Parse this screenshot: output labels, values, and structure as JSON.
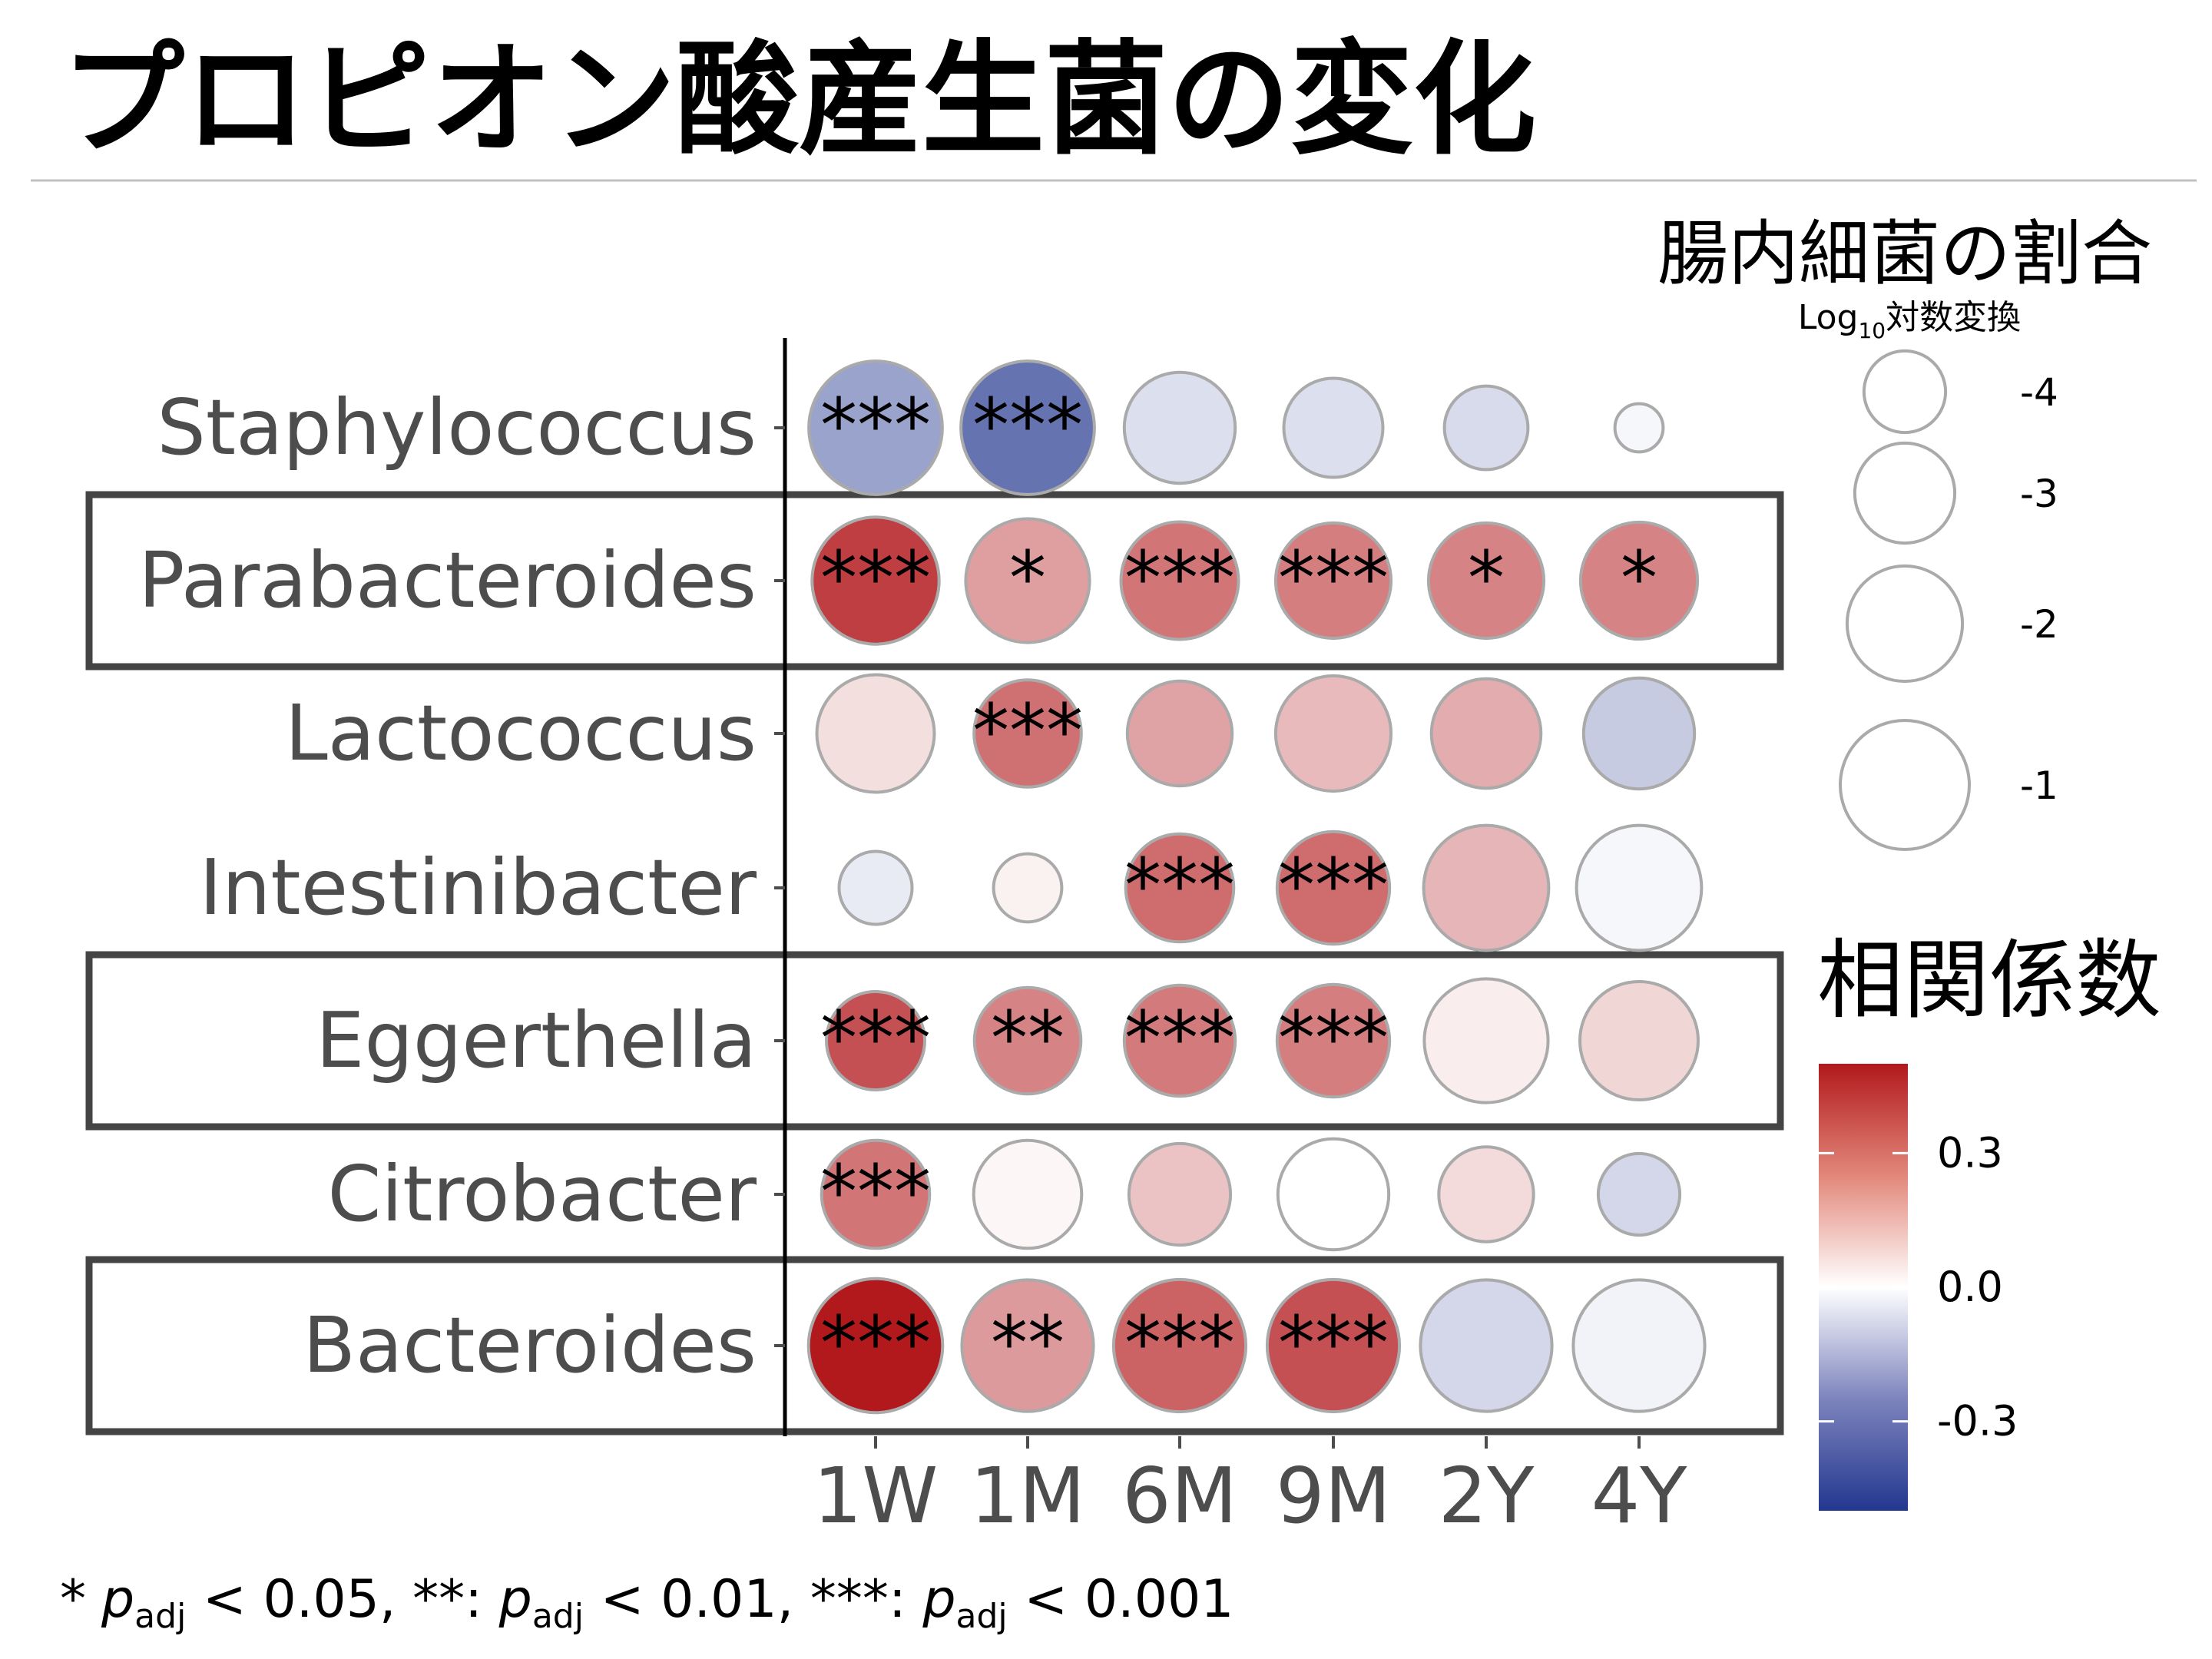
{
  "slide": {
    "title": "プロピオン酸産生菌の変化",
    "footnote": {
      "s1": "*",
      "p": "p",
      "adj": "adj",
      "t1": " < 0.05, ",
      "s2": "**: ",
      "t2": " < 0.01, ",
      "s3": "***: ",
      "t3": " < 0.001"
    }
  },
  "colors": {
    "divider": "#c0c0c0",
    "box": "#444444",
    "axis": "#000000",
    "tick_label": "#4d4d4d",
    "circle_stroke": "#aaaaaa",
    "scale_low": "#23378f",
    "scale_mid": "#ffffff",
    "scale_high": "#b2191d"
  },
  "chart_data": {
    "type": "bubble",
    "x_categories": [
      "1W",
      "1M",
      "6M",
      "9M",
      "2Y",
      "4Y"
    ],
    "y_categories": [
      "Staphylococcus",
      "Parabacteroides",
      "Lactococcus",
      "Intestinibacter",
      "Eggerthella",
      "Citrobacter",
      "Bacteroides"
    ],
    "highlighted_rows": [
      "Parabacteroides",
      "Eggerthella",
      "Bacteroides"
    ],
    "size_variable": "log10_abundance",
    "color_variable": "correlation",
    "cells": [
      {
        "y": "Staphylococcus",
        "x": "1W",
        "abundance_log10": -0.65,
        "corr": -0.23,
        "sig": "***"
      },
      {
        "y": "Staphylococcus",
        "x": "1M",
        "abundance_log10": -0.65,
        "corr": -0.35,
        "sig": "***"
      },
      {
        "y": "Staphylococcus",
        "x": "6M",
        "abundance_log10": -2.3,
        "corr": -0.08,
        "sig": ""
      },
      {
        "y": "Staphylococcus",
        "x": "9M",
        "abundance_log10": -3.05,
        "corr": -0.08,
        "sig": ""
      },
      {
        "y": "Staphylococcus",
        "x": "2Y",
        "abundance_log10": -3.9,
        "corr": -0.09,
        "sig": ""
      },
      {
        "y": "Staphylococcus",
        "x": "4Y",
        "abundance_log10": -5.3,
        "corr": -0.02,
        "sig": ""
      },
      {
        "y": "Parabacteroides",
        "x": "1W",
        "abundance_log10": -1.15,
        "corr": 0.42,
        "sig": "***"
      },
      {
        "y": "Parabacteroides",
        "x": "1M",
        "abundance_log10": -1.4,
        "corr": 0.21,
        "sig": "*"
      },
      {
        "y": "Parabacteroides",
        "x": "6M",
        "abundance_log10": -1.85,
        "corr": 0.3,
        "sig": "***"
      },
      {
        "y": "Parabacteroides",
        "x": "9M",
        "abundance_log10": -2.0,
        "corr": 0.28,
        "sig": "***"
      },
      {
        "y": "Parabacteroides",
        "x": "2Y",
        "abundance_log10": -2.0,
        "corr": 0.27,
        "sig": "*"
      },
      {
        "y": "Parabacteroides",
        "x": "4Y",
        "abundance_log10": -1.9,
        "corr": 0.27,
        "sig": "*"
      },
      {
        "y": "Lactococcus",
        "x": "1W",
        "abundance_log10": -1.85,
        "corr": 0.07,
        "sig": ""
      },
      {
        "y": "Lactococcus",
        "x": "1M",
        "abundance_log10": -2.55,
        "corr": 0.31,
        "sig": "***"
      },
      {
        "y": "Lactococcus",
        "x": "6M",
        "abundance_log10": -2.7,
        "corr": 0.2,
        "sig": ""
      },
      {
        "y": "Lactococcus",
        "x": "9M",
        "abundance_log10": -2.0,
        "corr": 0.15,
        "sig": ""
      },
      {
        "y": "Lactococcus",
        "x": "2Y",
        "abundance_log10": -2.4,
        "corr": 0.18,
        "sig": ""
      },
      {
        "y": "Lactococcus",
        "x": "4Y",
        "abundance_log10": -2.3,
        "corr": -0.13,
        "sig": ""
      },
      {
        "y": "Intestinibacter",
        "x": "1W",
        "abundance_log10": -4.4,
        "corr": -0.05,
        "sig": ""
      },
      {
        "y": "Intestinibacter",
        "x": "1M",
        "abundance_log10": -4.6,
        "corr": 0.03,
        "sig": ""
      },
      {
        "y": "Intestinibacter",
        "x": "6M",
        "abundance_log10": -2.5,
        "corr": 0.32,
        "sig": "***"
      },
      {
        "y": "Intestinibacter",
        "x": "9M",
        "abundance_log10": -2.2,
        "corr": 0.32,
        "sig": "***"
      },
      {
        "y": "Intestinibacter",
        "x": "2Y",
        "abundance_log10": -1.3,
        "corr": 0.16,
        "sig": ""
      },
      {
        "y": "Intestinibacter",
        "x": "4Y",
        "abundance_log10": -1.3,
        "corr": -0.02,
        "sig": ""
      },
      {
        "y": "Eggerthella",
        "x": "1W",
        "abundance_log10": -3.1,
        "corr": 0.38,
        "sig": "***"
      },
      {
        "y": "Eggerthella",
        "x": "1M",
        "abundance_log10": -2.6,
        "corr": 0.27,
        "sig": "**"
      },
      {
        "y": "Eggerthella",
        "x": "6M",
        "abundance_log10": -2.3,
        "corr": 0.29,
        "sig": "***"
      },
      {
        "y": "Eggerthella",
        "x": "9M",
        "abundance_log10": -2.2,
        "corr": 0.28,
        "sig": "***"
      },
      {
        "y": "Eggerthella",
        "x": "2Y",
        "abundance_log10": -1.4,
        "corr": 0.04,
        "sig": ""
      },
      {
        "y": "Eggerthella",
        "x": "4Y",
        "abundance_log10": -1.8,
        "corr": 0.09,
        "sig": ""
      },
      {
        "y": "Citrobacter",
        "x": "1W",
        "abundance_log10": -2.5,
        "corr": 0.3,
        "sig": "***"
      },
      {
        "y": "Citrobacter",
        "x": "1M",
        "abundance_log10": -2.5,
        "corr": 0.02,
        "sig": ""
      },
      {
        "y": "Citrobacter",
        "x": "6M",
        "abundance_log10": -2.9,
        "corr": 0.13,
        "sig": ""
      },
      {
        "y": "Citrobacter",
        "x": "9M",
        "abundance_log10": -2.3,
        "corr": 0.0,
        "sig": ""
      },
      {
        "y": "Citrobacter",
        "x": "2Y",
        "abundance_log10": -3.3,
        "corr": 0.08,
        "sig": ""
      },
      {
        "y": "Citrobacter",
        "x": "4Y",
        "abundance_log10": -4.0,
        "corr": -0.1,
        "sig": ""
      },
      {
        "y": "Bacteroides",
        "x": "1W",
        "abundance_log10": -0.6,
        "corr": 0.5,
        "sig": "***"
      },
      {
        "y": "Bacteroides",
        "x": "1M",
        "abundance_log10": -0.8,
        "corr": 0.22,
        "sig": "**"
      },
      {
        "y": "Bacteroides",
        "x": "6M",
        "abundance_log10": -0.75,
        "corr": 0.34,
        "sig": "***"
      },
      {
        "y": "Bacteroides",
        "x": "9M",
        "abundance_log10": -0.75,
        "corr": 0.38,
        "sig": "***"
      },
      {
        "y": "Bacteroides",
        "x": "2Y",
        "abundance_log10": -0.8,
        "corr": -0.1,
        "sig": ""
      },
      {
        "y": "Bacteroides",
        "x": "4Y",
        "abundance_log10": -0.8,
        "corr": -0.03,
        "sig": ""
      }
    ],
    "size_legend": {
      "title": "腸内細菌の割合",
      "subtitle_prefix": "Log",
      "subtitle_sub": "10",
      "subtitle_suffix": "対数変換",
      "entries": [
        {
          "label": "-4",
          "value": -4
        },
        {
          "label": "-3",
          "value": -3
        },
        {
          "label": "-2",
          "value": -2
        },
        {
          "label": "-1",
          "value": -1
        }
      ]
    },
    "color_legend": {
      "title": "相関係数",
      "range": [
        -0.5,
        0.5
      ],
      "ticks": [
        {
          "label": "0.3",
          "value": 0.3
        },
        {
          "label": "0.0",
          "value": 0.0
        },
        {
          "label": "-0.3",
          "value": -0.3
        }
      ]
    }
  }
}
